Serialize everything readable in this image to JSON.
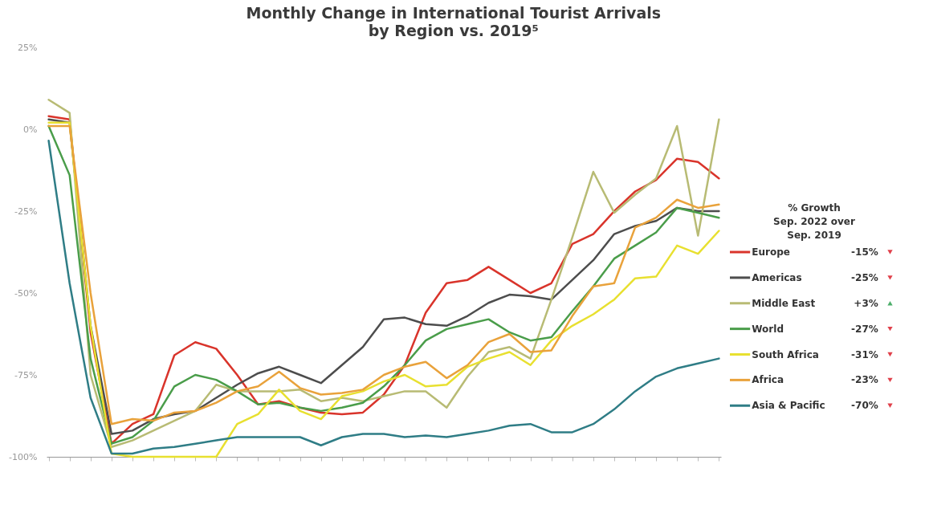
{
  "chart_data": {
    "type": "line",
    "title": "Monthly Change in International Tourist Arrivals",
    "subtitle": "by Region vs. 2019⁵",
    "legend_title": "% Growth\nSep. 2022 over\nSep. 2019",
    "legend": "right",
    "grid": false,
    "categories": [
      null,
      null,
      null,
      null,
      null,
      null,
      null,
      null,
      null,
      null,
      null,
      null,
      null,
      null,
      null,
      null,
      null,
      null,
      null,
      null,
      null,
      null,
      null,
      null,
      null,
      null,
      null,
      null,
      null,
      null,
      null,
      null,
      null
    ],
    "ylim": [
      -100,
      25
    ],
    "yticks": [
      {
        "value": 25,
        "label": "25%"
      },
      {
        "value": 0,
        "label": "0%"
      },
      {
        "value": -25,
        "label": "-25%"
      },
      {
        "value": -50,
        "label": "-50%"
      },
      {
        "value": -75,
        "label": "-75%"
      },
      {
        "value": -100,
        "label": "-100%"
      }
    ],
    "series": [
      {
        "name": "Europe",
        "color": "#d9342b",
        "values": [
          4,
          3,
          -62,
          -96,
          -90,
          -87,
          -69,
          -65,
          -67,
          -75,
          -84,
          -83,
          -85,
          -86.5,
          -87,
          -86.5,
          -81,
          -72,
          -56,
          -47,
          -46,
          -42,
          -46,
          -50,
          -47,
          -35,
          -32,
          -25,
          -19,
          -15.5,
          -9,
          -10,
          -15
        ]
      },
      {
        "name": "Americas",
        "color": "#4d4d4d",
        "values": [
          3,
          2,
          -60,
          -93,
          -92,
          -88.5,
          -87,
          -86,
          -82,
          -78,
          -74.5,
          -72.5,
          -75,
          -77.5,
          -72,
          -66.5,
          -58,
          -57.5,
          -59.5,
          -60,
          -57,
          -53,
          -50.5,
          -51,
          -52,
          -46,
          -40,
          -32,
          -29.5,
          -28,
          -24,
          -25,
          -25
        ]
      },
      {
        "name": "Middle East",
        "color": "#b8bb74",
        "values": [
          9,
          5,
          -75,
          -97,
          -95,
          -92,
          -89,
          -86,
          -78,
          -80,
          -80,
          -80,
          -79.5,
          -83,
          -82,
          -83,
          -81.5,
          -80,
          -80,
          -85,
          -75.5,
          -68,
          -66.5,
          -70,
          -52,
          -33,
          -13,
          -25.5,
          -20,
          -15,
          1,
          -32.5,
          3
        ]
      },
      {
        "name": "World",
        "color": "#4a9d4a",
        "values": [
          1,
          -14,
          -70,
          -96,
          -94,
          -89,
          -78.5,
          -75,
          -76.5,
          -80,
          -84,
          -83.5,
          -85,
          -86,
          -85,
          -83.5,
          -78.5,
          -72,
          -64.5,
          -61,
          -59.5,
          -58,
          -62,
          -64.5,
          -63.5,
          -55.5,
          -48,
          -39.5,
          -35.5,
          -31.5,
          -24,
          -25.5,
          -27
        ]
      },
      {
        "name": "South Africa",
        "color": "#e8e030",
        "values": [
          2,
          2,
          -60,
          -99,
          -100,
          -100,
          -100,
          -100,
          -100,
          -90,
          -87,
          -79.5,
          -86,
          -88.5,
          -81.5,
          -80,
          -77,
          -75,
          -78.5,
          -78,
          -72.5,
          -70,
          -68,
          -72,
          -64.5,
          -60,
          -56.5,
          -52,
          -45.5,
          -45,
          -35.5,
          -38,
          -31
        ]
      },
      {
        "name": "Africa",
        "color": "#e9a23b",
        "values": [
          1,
          1,
          -50,
          -90,
          -88.5,
          -89,
          -86.5,
          -86,
          -83.5,
          -80,
          -78.5,
          -74,
          -79,
          -81,
          -80.5,
          -79.5,
          -75,
          -72.5,
          -71,
          -76,
          -72,
          -65,
          -62.5,
          -68,
          -67.5,
          -57,
          -48,
          -47,
          -30,
          -27,
          -21.5,
          -24,
          -23
        ]
      },
      {
        "name": "Asia & Pacific",
        "color": "#2f7d86",
        "values": [
          -3.5,
          -47,
          -82,
          -99,
          -99,
          -97.5,
          -97,
          -96,
          -95,
          -94,
          -94,
          -94,
          -94,
          -96.5,
          -94,
          -93,
          -93,
          -94,
          -93.5,
          -94,
          -93,
          -92,
          -90.5,
          -90,
          -92.5,
          -92.5,
          -90,
          -85.5,
          -80,
          -75.5,
          -73,
          -71.5,
          -70
        ]
      }
    ],
    "annotations": [
      "-15%",
      "-25%",
      "+3%",
      "-27%",
      "-31%",
      "-23%",
      "-70%"
    ]
  }
}
